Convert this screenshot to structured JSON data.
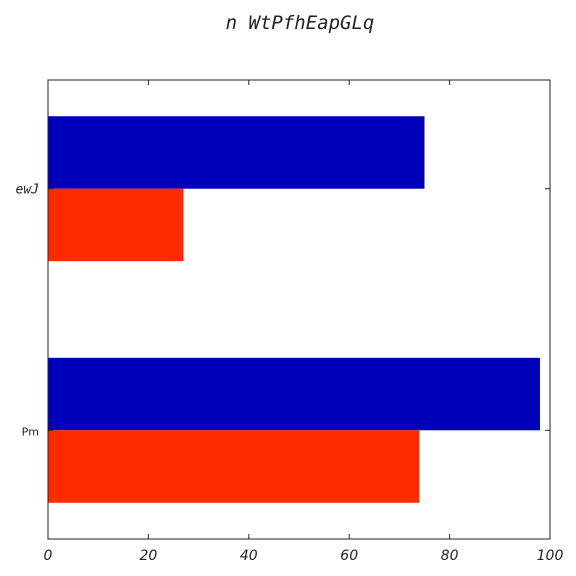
{
  "chart_data": {
    "type": "bar",
    "orientation": "horizontal",
    "title": "n WtPfhEapGLq",
    "xlabel": "",
    "ylabel": "",
    "categories": [
      "ewJ",
      "Pm"
    ],
    "series": [
      {
        "values": [
          75,
          98
        ],
        "color": "#0000bb"
      },
      {
        "values": [
          27,
          74
        ],
        "color": "#ff2a00"
      }
    ],
    "xlim": [
      0,
      100
    ],
    "xticks": [
      0,
      20,
      40,
      60,
      80,
      100
    ],
    "xtick_labels": [
      "0",
      "20",
      "40",
      "60",
      "80",
      "100"
    ],
    "grid": false,
    "legend": "none"
  }
}
